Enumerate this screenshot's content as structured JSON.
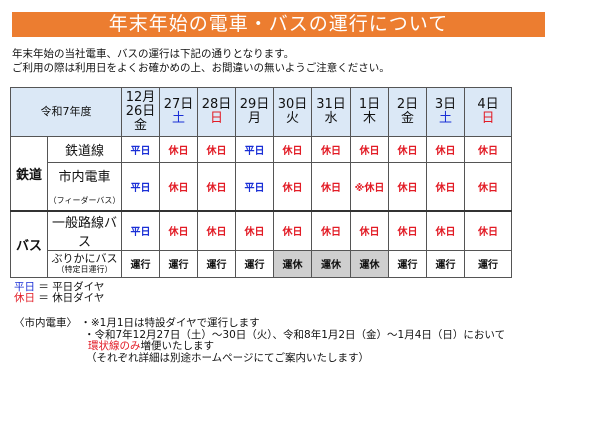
{
  "title": "年末年始の電車・バスの運行について",
  "intro": [
    "年末年始の当社電車、バスの運行は下記の通りとなります。",
    "ご利用の際は利用日をよくお確かめの上、お間違いの無いようご注意ください。"
  ],
  "table": {
    "year_label": "令和7年度",
    "month_label": "12月",
    "dates": [
      {
        "d": "26日",
        "w": "金",
        "c": ""
      },
      {
        "d": "27日",
        "w": "土",
        "c": "blue"
      },
      {
        "d": "28日",
        "w": "日",
        "c": "red"
      },
      {
        "d": "29日",
        "w": "月",
        "c": ""
      },
      {
        "d": "30日",
        "w": "火",
        "c": ""
      },
      {
        "d": "31日",
        "w": "水",
        "c": ""
      },
      {
        "d": "1日",
        "w": "木",
        "c": ""
      },
      {
        "d": "2日",
        "w": "金",
        "c": ""
      },
      {
        "d": "3日",
        "w": "土",
        "c": "blue"
      },
      {
        "d": "4日",
        "w": "日",
        "c": "red"
      }
    ],
    "groups": {
      "rail": "鉄道",
      "bus": "バス"
    },
    "rows": [
      {
        "label": "鉄道線",
        "sub": "",
        "cells": [
          "平日",
          "休日",
          "休日",
          "平日",
          "休日",
          "休日",
          "休日",
          "休日",
          "休日",
          "休日"
        ]
      },
      {
        "label": "市内電車",
        "sub": "（フィーダーバス）",
        "cells": [
          "平日",
          "休日",
          "休日",
          "平日",
          "休日",
          "休日",
          "※休日",
          "休日",
          "休日",
          "休日"
        ]
      },
      {
        "label": "一般路線バス",
        "sub": "",
        "cells": [
          "平日",
          "休日",
          "休日",
          "休日",
          "休日",
          "休日",
          "休日",
          "休日",
          "休日",
          "休日"
        ]
      },
      {
        "label": "ぶりかにバス",
        "sub": "（特定日運行）",
        "cells": [
          "運行",
          "運行",
          "運行",
          "運行",
          "運休",
          "運休",
          "運休",
          "運行",
          "運行",
          "運行"
        ]
      }
    ]
  },
  "legend": [
    {
      "key": "平日",
      "eq": "＝",
      "val": "平日ダイヤ"
    },
    {
      "key": "休日",
      "eq": "＝",
      "val": "休日ダイヤ"
    }
  ],
  "notes": {
    "head": "〈市内電車〉",
    "line1": "・※1月1日は特設ダイヤで運行します",
    "line2": "・令和7年12月27日（土）～30日（火）、令和8年1月2日（金）～1月4日（日）において",
    "line3_red": "環状線のみ",
    "line3": "増便いたします",
    "line4": "（それぞれ詳細は別途ホームページにてご案内いたします）"
  },
  "colors": {
    "banner": "#ec7d30",
    "weekday": "#1a2fd6",
    "holiday": "#e21b25",
    "header_bg": "#dbe8f6",
    "suspended_bg": "#cfcfcf"
  }
}
